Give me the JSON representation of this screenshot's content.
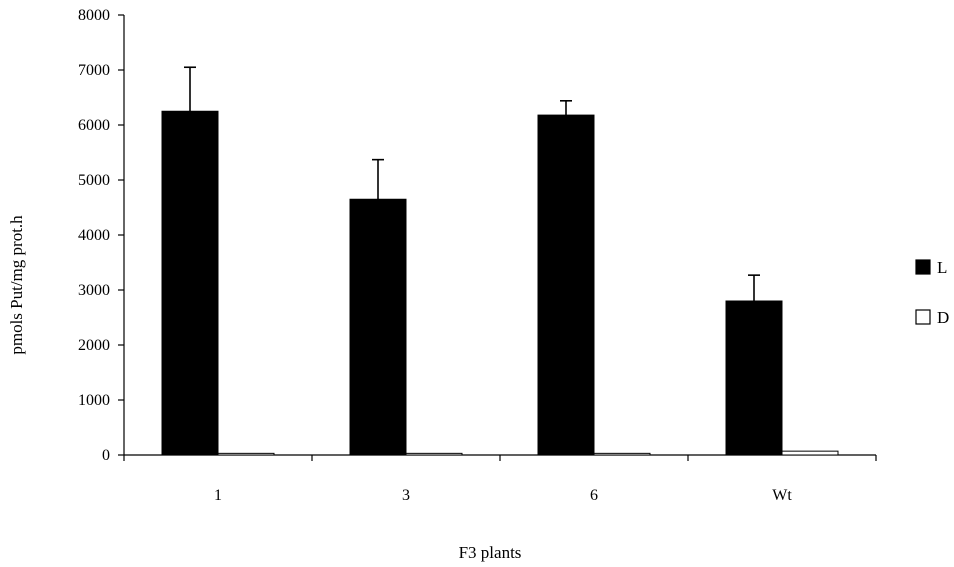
{
  "chart_data": {
    "type": "bar",
    "xlabel": "F3 plants",
    "ylabel": "pmols Put/mg prot.h",
    "ylim": [
      0,
      8000
    ],
    "yticks": [
      0,
      1000,
      2000,
      3000,
      4000,
      5000,
      6000,
      7000,
      8000
    ],
    "categories": [
      "1",
      "3",
      "6",
      "Wt"
    ],
    "series": [
      {
        "name": "L",
        "color": "#000000",
        "values": [
          6250,
          4650,
          6180,
          2800
        ],
        "error": [
          800,
          720,
          260,
          470
        ]
      },
      {
        "name": "D",
        "color": "#ffffff",
        "values": [
          30,
          30,
          30,
          70
        ],
        "error": [
          0,
          0,
          0,
          0
        ]
      }
    ],
    "legend": {
      "position": "right"
    },
    "grid": false
  }
}
